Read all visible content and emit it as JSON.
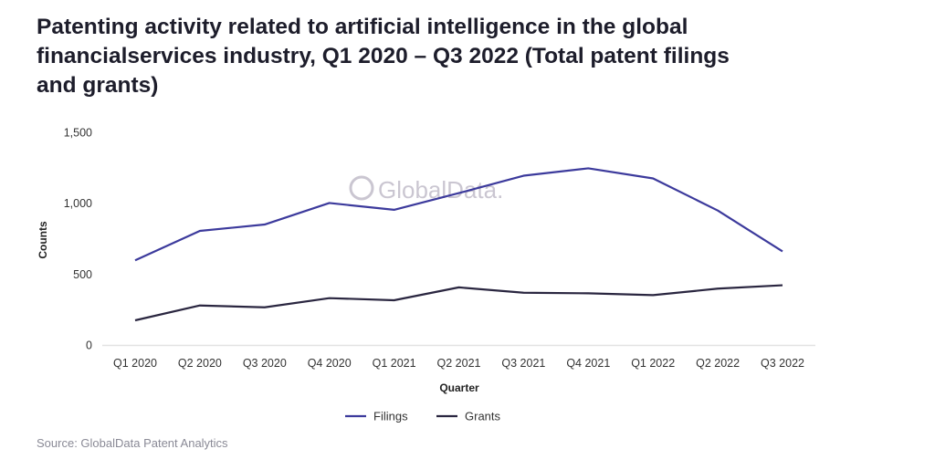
{
  "chart_data": {
    "type": "line",
    "title": "Patenting activity related to artificial intelligence in the global financialservices industry, Q1 2020 – Q3 2022 (Total patent filings and grants)",
    "xlabel": "Quarter",
    "ylabel": "Counts",
    "categories": [
      "Q1 2020",
      "Q2 2020",
      "Q3 2020",
      "Q4 2020",
      "Q1 2021",
      "Q2 2021",
      "Q3 2021",
      "Q4 2021",
      "Q1 2022",
      "Q2 2022",
      "Q3 2022"
    ],
    "yticks": [
      0,
      500,
      1000,
      1500
    ],
    "ytick_labels": [
      "0",
      "500",
      "1,000",
      "1,500"
    ],
    "ylim": [
      0,
      1500
    ],
    "grid": false,
    "legend_position": "bottom",
    "series": [
      {
        "name": "Filings",
        "color": "#3c3a9c",
        "values": [
          600,
          808,
          853,
          1005,
          957,
          1075,
          1198,
          1250,
          1179,
          952,
          663
        ]
      },
      {
        "name": "Grants",
        "color": "#2a2640",
        "values": [
          176,
          281,
          268,
          333,
          318,
          409,
          371,
          367,
          354,
          400,
          424
        ]
      }
    ],
    "watermark": "GlobalData.",
    "source": "Source: GlobalData Patent Analytics"
  }
}
